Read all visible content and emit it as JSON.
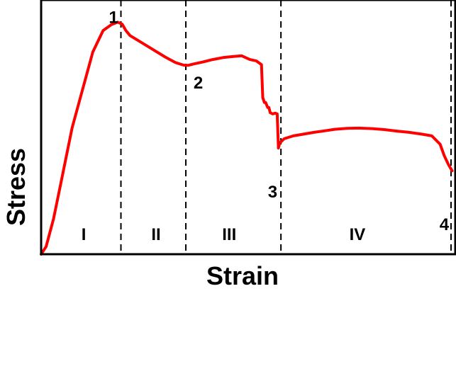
{
  "chart_data": {
    "type": "line",
    "xlabel": "Strain",
    "ylabel": "Stress",
    "xlim": [
      0,
      100
    ],
    "ylim": [
      0,
      100
    ],
    "grid": false,
    "series": [
      {
        "color": "#ff0000",
        "x": [
          0,
          1.2,
          3,
          5,
          7.5,
          10,
          12.5,
          15,
          17,
          18.5,
          19.6,
          20.5,
          21.5,
          23,
          25,
          27.5,
          30,
          32.5,
          34.5,
          35.5,
          37,
          39,
          41.5,
          44,
          46.5,
          48.5,
          50.5,
          52,
          53.3,
          53.6,
          54,
          54.3,
          54.8,
          55.1,
          55.4,
          56,
          56.6,
          57.1,
          57.4,
          57.7,
          58.8,
          61,
          63.5,
          66,
          68.5,
          71,
          74,
          77,
          80,
          83,
          86,
          89,
          92,
          94.5,
          96.5,
          97.5,
          98.5,
          99.4
        ],
        "y": [
          0,
          3,
          14,
          30,
          50,
          65,
          80,
          88.5,
          90.8,
          91.8,
          91,
          88.5,
          86.5,
          85,
          83,
          80.5,
          78,
          75.8,
          74.8,
          74.7,
          75.3,
          76,
          77,
          77.8,
          78.2,
          78.5,
          77,
          76.5,
          75,
          62,
          60,
          60,
          58,
          58,
          56,
          55.5,
          55.8,
          55.5,
          42,
          44,
          45.7,
          46.8,
          47.5,
          48.2,
          48.8,
          49.4,
          49.8,
          49.9,
          49.7,
          49.3,
          48.7,
          48.2,
          47.5,
          46.8,
          43.5,
          39,
          35.5,
          33
        ]
      }
    ],
    "vlines_x": [
      19.3,
      35,
      58,
      100
    ],
    "regions": [
      {
        "label": "I",
        "x": 10.3
      },
      {
        "label": "II",
        "x": 27.8
      },
      {
        "label": "III",
        "x": 45.5
      },
      {
        "label": "IV",
        "x": 76.5
      }
    ],
    "points": [
      {
        "label": "1",
        "x": 17.5,
        "y": 94
      },
      {
        "label": "2",
        "x": 38,
        "y": 68
      },
      {
        "label": "3",
        "x": 56,
        "y": 25
      },
      {
        "label": "4",
        "x": 97.5,
        "y": 12
      }
    ]
  }
}
